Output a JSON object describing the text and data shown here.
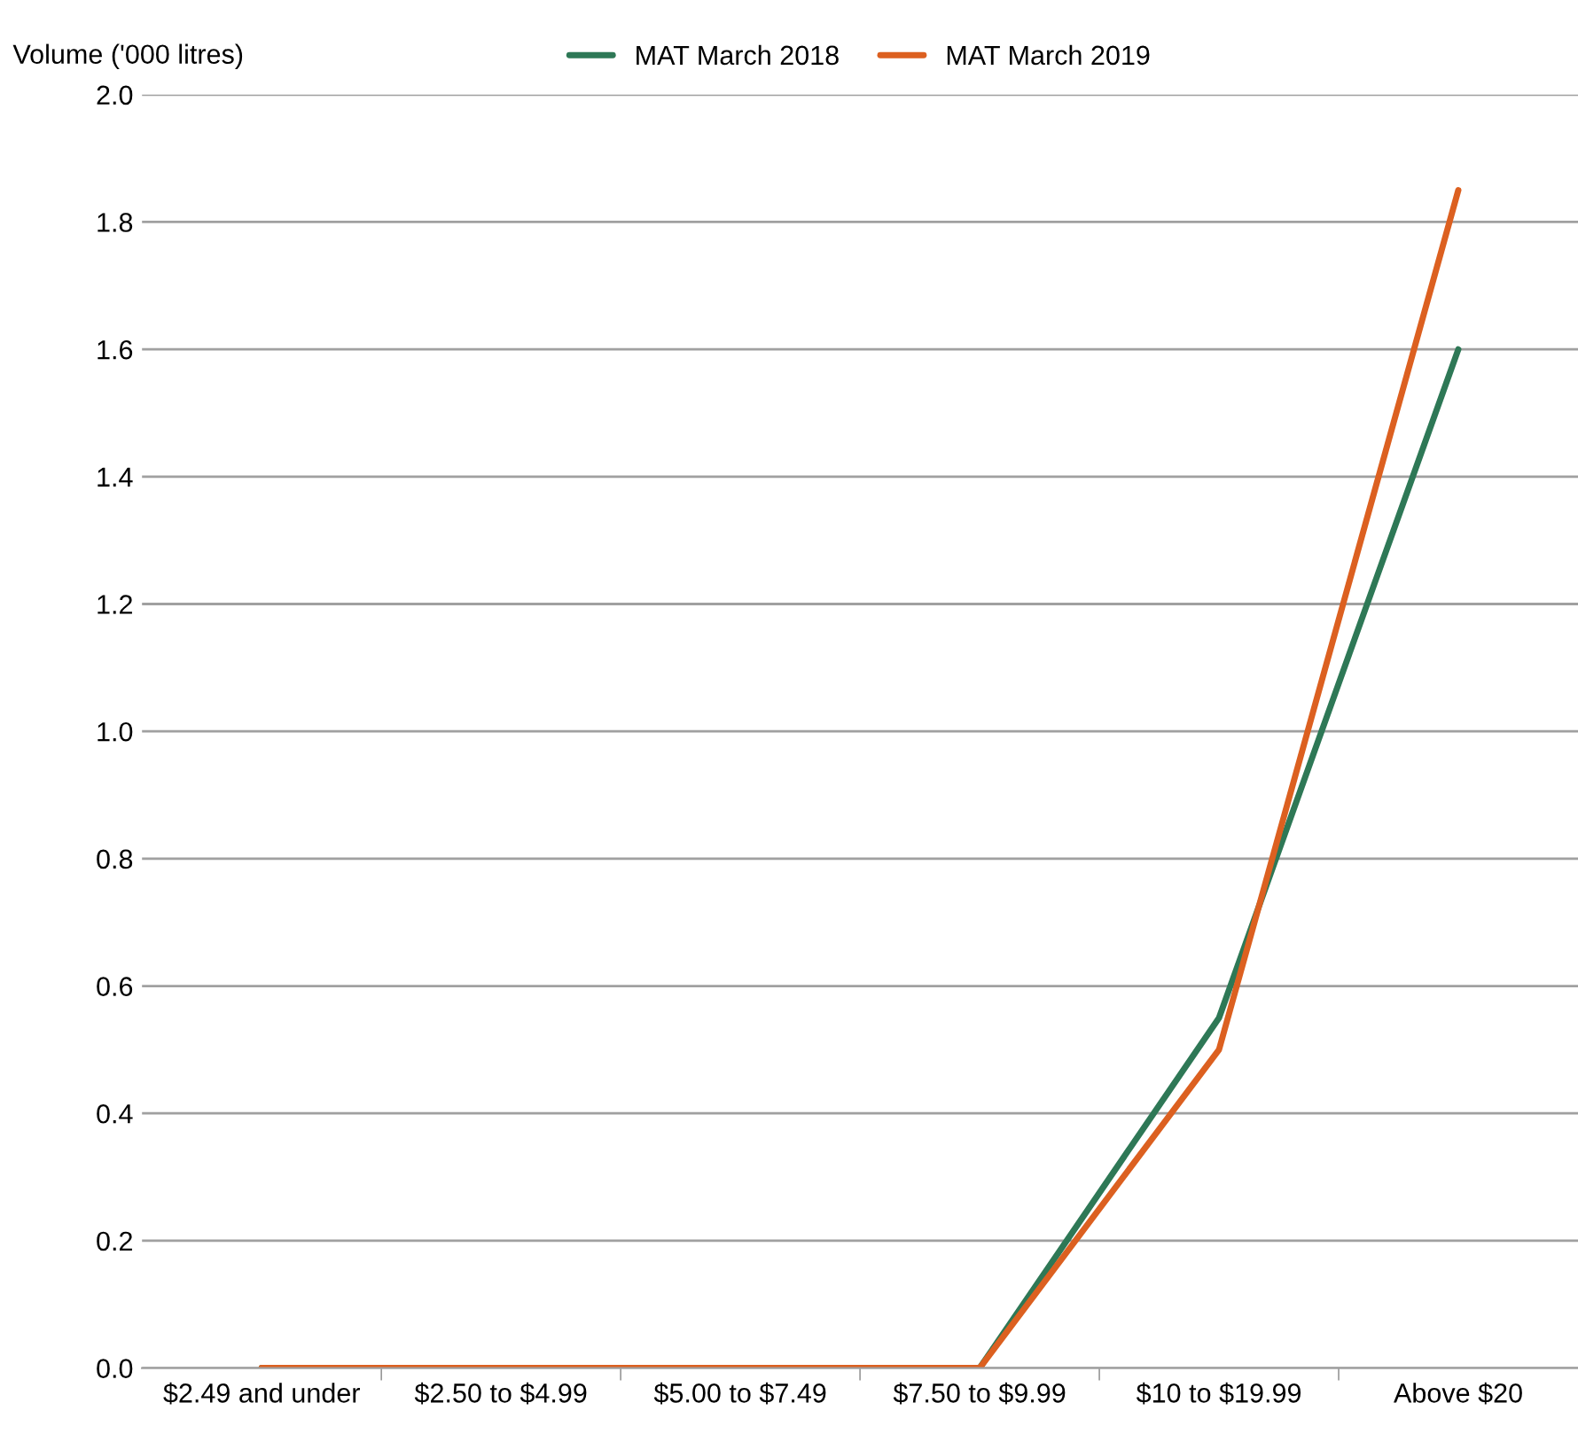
{
  "chart_data": {
    "type": "line",
    "ylabel": "Volume ('000 litres)",
    "categories": [
      "$2.49 and under",
      "$2.50 to $4.99",
      "$5.00 to $7.49",
      "$7.50 to $9.99",
      "$10 to $19.99",
      "Above $20"
    ],
    "series": [
      {
        "name": "MAT March 2018",
        "color": "#2e7856",
        "values": [
          0,
          0,
          0,
          0,
          0.55,
          1.6
        ]
      },
      {
        "name": "MAT March 2019",
        "color": "#dc6020",
        "values": [
          0,
          0,
          0,
          0,
          0.5,
          1.85
        ]
      }
    ],
    "ylim": [
      0,
      2.0
    ],
    "yticks": [
      {
        "value": 0,
        "label": "0.0"
      },
      {
        "value": 0.2,
        "label": "0.2"
      },
      {
        "value": 0.4,
        "label": "0.4"
      },
      {
        "value": 0.6,
        "label": "0.6"
      },
      {
        "value": 0.8,
        "label": "0.8"
      },
      {
        "value": 1.0,
        "label": "1.0"
      },
      {
        "value": 1.2,
        "label": "1.2"
      },
      {
        "value": 1.4,
        "label": "1.4"
      },
      {
        "value": 1.6,
        "label": "1.6"
      },
      {
        "value": 1.8,
        "label": "1.8"
      },
      {
        "value": 2.0,
        "label": "2.0"
      }
    ],
    "grid": "y",
    "legend": "top",
    "marker": "none",
    "line_style": "solid"
  }
}
